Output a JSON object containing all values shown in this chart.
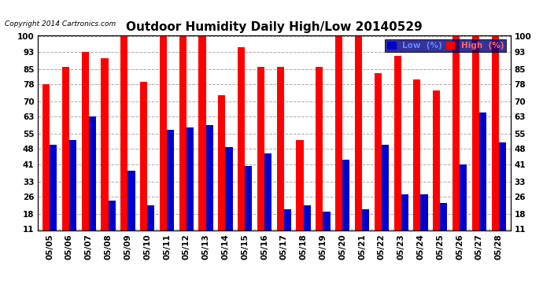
{
  "title": "Outdoor Humidity Daily High/Low 20140529",
  "copyright": "Copyright 2014 Cartronics.com",
  "legend_low": "Low  (%)",
  "legend_high": "High  (%)",
  "dates": [
    "05/05",
    "05/06",
    "05/07",
    "05/08",
    "05/09",
    "05/10",
    "05/11",
    "05/12",
    "05/13",
    "05/14",
    "05/15",
    "05/16",
    "05/17",
    "05/18",
    "05/19",
    "05/20",
    "05/21",
    "05/22",
    "05/23",
    "05/24",
    "05/25",
    "05/26",
    "05/27",
    "05/28"
  ],
  "high": [
    78,
    86,
    93,
    90,
    100,
    79,
    100,
    100,
    100,
    73,
    95,
    86,
    86,
    52,
    86,
    100,
    100,
    83,
    91,
    80,
    75,
    100,
    100,
    100
  ],
  "low": [
    50,
    52,
    63,
    24,
    38,
    22,
    57,
    58,
    59,
    49,
    40,
    46,
    20,
    22,
    19,
    43,
    20,
    50,
    27,
    27,
    23,
    41,
    65,
    51
  ],
  "bar_color_high": "#ff0000",
  "bar_color_low": "#0000cc",
  "bg_color": "#ffffff",
  "plot_bg_color": "#ffffff",
  "grid_color": "#aaaaaa",
  "title_fontsize": 11,
  "tick_fontsize": 7.5,
  "yticks": [
    11,
    18,
    26,
    33,
    41,
    48,
    55,
    63,
    70,
    78,
    85,
    93,
    100
  ],
  "ymin": 11,
  "ymax": 100
}
